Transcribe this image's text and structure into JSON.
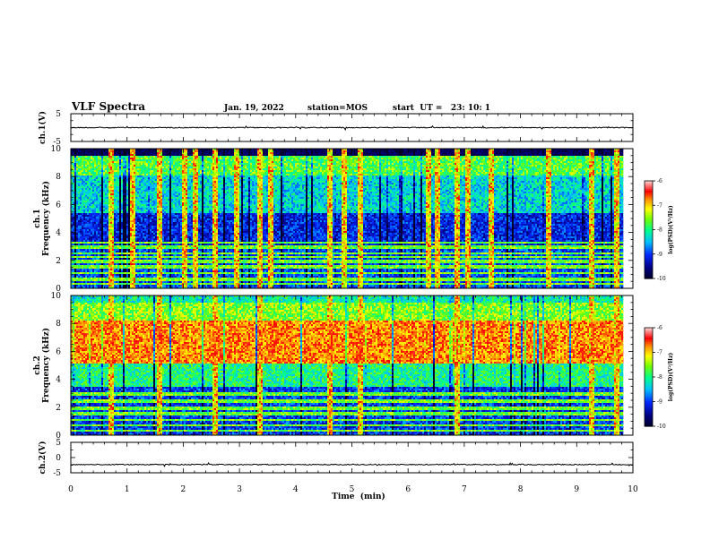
{
  "header": {
    "title": "VLF Spectra",
    "date": "Jan. 19, 2022",
    "station": "station=MOS",
    "start_ut": "start  UT =   23: 10: 1"
  },
  "chart_data": [
    {
      "type": "line",
      "name": "ch1-waveform",
      "ylabel": "ch.1(V)",
      "ylim": [
        -5,
        5
      ],
      "yticks": [
        "5",
        "-5"
      ],
      "baseline_value": 0
    },
    {
      "type": "heatmap",
      "name": "ch1-spectrogram",
      "ylabel_line1": "ch.1",
      "ylabel_line2": "Frequency (kHz)",
      "ylim": [
        0,
        10
      ],
      "yticks": [
        "0",
        "2",
        "4",
        "6",
        "8",
        "10"
      ],
      "xlim": [
        0,
        9.83
      ],
      "colorbar": {
        "label": "log(PSD)(V²/Hz)",
        "range": [
          -10,
          -6
        ],
        "ticks": [
          "-6",
          "-7",
          "-8",
          "-9",
          "-10"
        ],
        "colors": [
          "#000080",
          "#0000ff",
          "#00c0ff",
          "#00ff80",
          "#80ff00",
          "#ffff00",
          "#ff8000",
          "#ff0000",
          "#ffc0c0",
          "#ffffff"
        ]
      },
      "line_emissions_khz": [
        0.4,
        0.6,
        0.8,
        1.2,
        1.6,
        2.0,
        2.3,
        2.6,
        3.0,
        3.3
      ],
      "vertical_bursts_min": [
        0.7,
        1.1,
        1.55,
        2.0,
        2.2,
        2.55,
        2.95,
        3.35,
        3.55,
        4.6,
        4.85,
        5.15,
        6.35,
        6.5,
        6.85,
        7.05,
        7.45,
        8.5,
        9.25,
        9.7
      ]
    },
    {
      "type": "heatmap",
      "name": "ch2-spectrogram",
      "ylabel_line1": "ch.2",
      "ylabel_line2": "Frequency (kHz)",
      "ylim": [
        0,
        10
      ],
      "yticks": [
        "0",
        "2",
        "4",
        "6",
        "8",
        "10"
      ],
      "xlim": [
        0,
        9.83
      ],
      "colorbar": {
        "label": "log(PSD)(V²/Hz)",
        "range": [
          -10,
          -6
        ],
        "ticks": [
          "-6",
          "-7",
          "-8",
          "-9",
          "-10"
        ],
        "colors": [
          "#000080",
          "#0000ff",
          "#00c0ff",
          "#00ff80",
          "#80ff00",
          "#ffff00",
          "#ff8000",
          "#ff0000",
          "#ffc0c0",
          "#ffffff"
        ]
      },
      "hiss_band_khz": [
        5.2,
        8.3
      ],
      "line_emissions_khz": [
        0.4,
        0.8,
        1.2,
        1.6,
        2.0,
        2.5,
        3.0
      ],
      "vertical_bursts_min": [
        0.7,
        1.55,
        2.55,
        3.35,
        4.6,
        5.15,
        6.85,
        9.25,
        9.7
      ]
    },
    {
      "type": "line",
      "name": "ch2-waveform",
      "ylabel": "ch.2(V)",
      "ylim": [
        -5,
        5
      ],
      "yticks": [
        "5",
        "0",
        "-5"
      ],
      "baseline_value": -2.3
    }
  ],
  "xaxis": {
    "label": "Time  (min)",
    "xlim": [
      0,
      10
    ],
    "ticks": [
      "0",
      "1",
      "2",
      "3",
      "4",
      "5",
      "6",
      "7",
      "8",
      "9",
      "10"
    ]
  }
}
